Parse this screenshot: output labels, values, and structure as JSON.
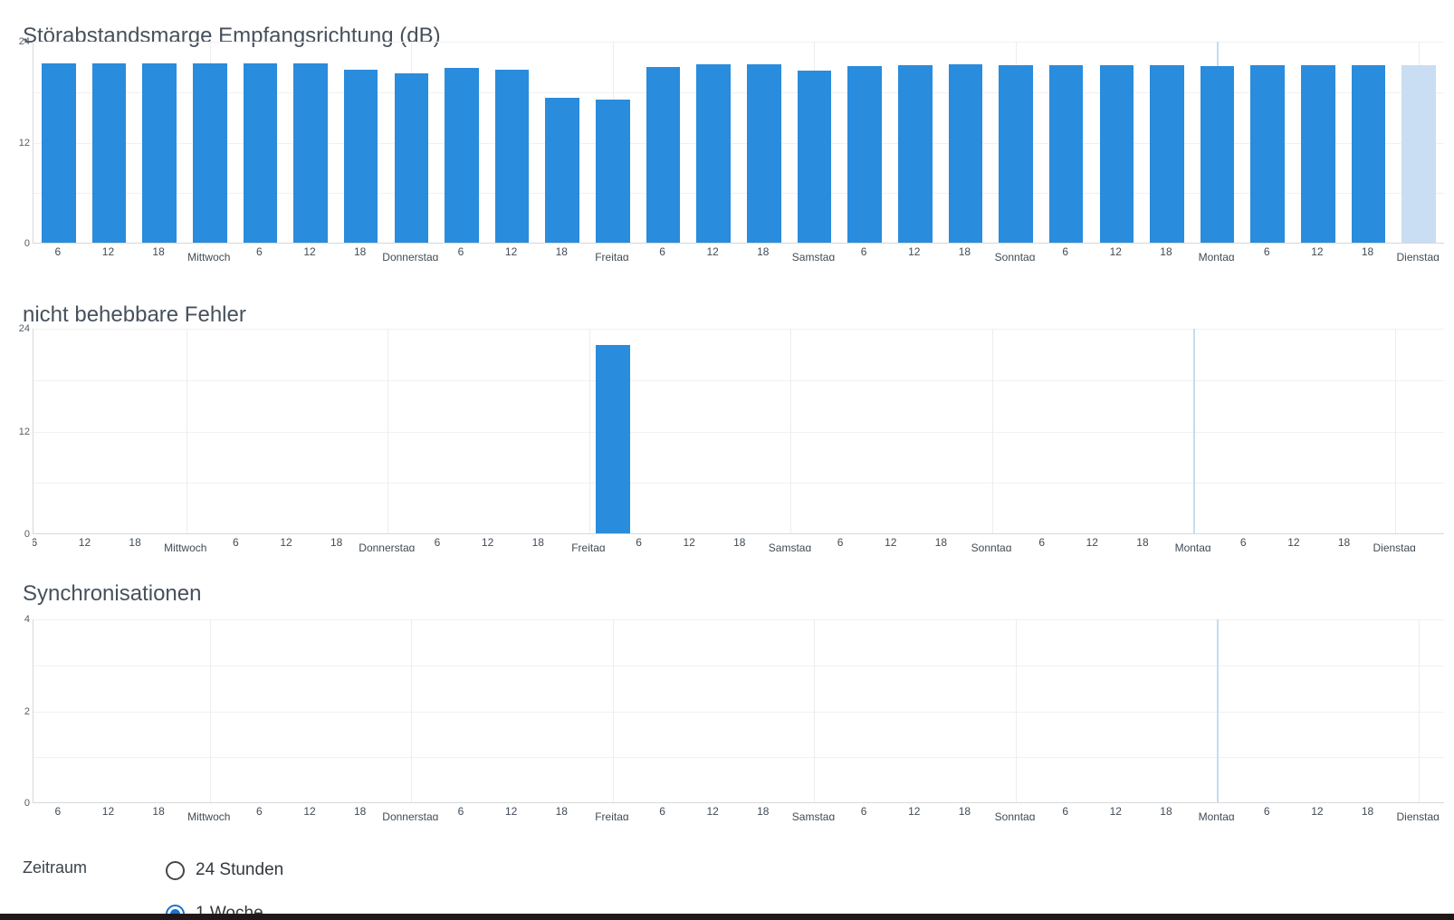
{
  "colors": {
    "bar": "#298cdc",
    "bar_highlight": "#c9def2",
    "marker_line": "#c3ddf1",
    "grid": "#f1f1f1",
    "day_grid": "#ededed",
    "axis": "#d8d8d8",
    "title_text": "#47515c",
    "tick_text": "#525c66",
    "radio_selected": "#1872ce",
    "radio_unselected": "#44474a",
    "bottom_bar": "#201719"
  },
  "x_axis": {
    "slot_labels": [
      "6",
      "12",
      "18",
      "Mittwoch",
      "6",
      "12",
      "18",
      "Donnerstag",
      "6",
      "12",
      "18",
      "Freitag",
      "6",
      "12",
      "18",
      "Samstag",
      "6",
      "12",
      "18",
      "Sonntag",
      "6",
      "12",
      "18",
      "Montag",
      "6",
      "12",
      "18",
      "Dienstag"
    ],
    "day_slots": [
      3,
      7,
      11,
      15,
      19,
      23,
      27
    ],
    "marker_slot": 23
  },
  "charts": [
    {
      "title": "Störabstandsmarge Empfangsrichtung (dB)",
      "y_ticks": [
        0,
        12,
        24
      ],
      "y_max": 24,
      "grid_step": 6,
      "highlight_last": true,
      "values": [
        21.3,
        21.3,
        21.3,
        21.3,
        21.3,
        21.3,
        20.6,
        20.1,
        20.8,
        20.6,
        17.2,
        17.0,
        20.9,
        21.2,
        21.2,
        20.4,
        21.0,
        21.1,
        21.2,
        21.1,
        21.1,
        21.1,
        21.1,
        21.0,
        21.1,
        21.1,
        21.1,
        21.1
      ]
    },
    {
      "title": "nicht behebbare Fehler",
      "y_ticks": [
        0,
        12,
        24
      ],
      "y_max": 24,
      "grid_step": 6,
      "highlight_last": false,
      "values": [
        0,
        0,
        0,
        0,
        0,
        0,
        0,
        0,
        0,
        0,
        0,
        22,
        0,
        0,
        0,
        0,
        0,
        0,
        0,
        0,
        0,
        0,
        0,
        0,
        0,
        0,
        0,
        0
      ]
    },
    {
      "title": "Synchronisationen",
      "y_ticks": [
        0,
        2,
        4
      ],
      "y_max": 4,
      "grid_step": 1,
      "highlight_last": false,
      "values": [
        0,
        0,
        0,
        0,
        0,
        0,
        0,
        0,
        0,
        0,
        0,
        0,
        0,
        0,
        0,
        0,
        0,
        0,
        0,
        0,
        0,
        0,
        0,
        0,
        0,
        0,
        0,
        0
      ]
    }
  ],
  "chart_data": [
    {
      "type": "bar",
      "title": "Störabstandsmarge Empfangsrichtung (dB)",
      "categories": [
        "6",
        "12",
        "18",
        "Mittwoch",
        "6",
        "12",
        "18",
        "Donnerstag",
        "6",
        "12",
        "18",
        "Freitag",
        "6",
        "12",
        "18",
        "Samstag",
        "6",
        "12",
        "18",
        "Sonntag",
        "6",
        "12",
        "18",
        "Montag",
        "6",
        "12",
        "18",
        "Dienstag"
      ],
      "values": [
        21.3,
        21.3,
        21.3,
        21.3,
        21.3,
        21.3,
        20.6,
        20.1,
        20.8,
        20.6,
        17.2,
        17.0,
        20.9,
        21.2,
        21.2,
        20.4,
        21.0,
        21.1,
        21.2,
        21.1,
        21.1,
        21.1,
        21.1,
        21.0,
        21.1,
        21.1,
        21.1,
        21.1
      ],
      "xlabel": "",
      "ylabel": "",
      "ylim": [
        0,
        24
      ],
      "y_tick_labels": [
        0,
        12,
        24
      ],
      "grid": "on",
      "legend": "none",
      "note_last_bar": "highlighted light blue (current incomplete period, Dienstag)"
    },
    {
      "type": "bar",
      "title": "nicht behebbare Fehler",
      "categories": [
        "6",
        "12",
        "18",
        "Mittwoch",
        "6",
        "12",
        "18",
        "Donnerstag",
        "6",
        "12",
        "18",
        "Freitag",
        "6",
        "12",
        "18",
        "Samstag",
        "6",
        "12",
        "18",
        "Sonntag",
        "6",
        "12",
        "18",
        "Montag",
        "6",
        "12",
        "18",
        "Dienstag"
      ],
      "values": [
        0,
        0,
        0,
        0,
        0,
        0,
        0,
        0,
        0,
        0,
        0,
        22,
        0,
        0,
        0,
        0,
        0,
        0,
        0,
        0,
        0,
        0,
        0,
        0,
        0,
        0,
        0,
        0
      ],
      "xlabel": "",
      "ylabel": "",
      "ylim": [
        0,
        24
      ],
      "y_tick_labels": [
        0,
        12,
        24
      ],
      "grid": "on",
      "legend": "none"
    },
    {
      "type": "bar",
      "title": "Synchronisationen",
      "categories": [
        "6",
        "12",
        "18",
        "Mittwoch",
        "6",
        "12",
        "18",
        "Donnerstag",
        "6",
        "12",
        "18",
        "Freitag",
        "6",
        "12",
        "18",
        "Samstag",
        "6",
        "12",
        "18",
        "Sonntag",
        "6",
        "12",
        "18",
        "Montag",
        "6",
        "12",
        "18",
        "Dienstag"
      ],
      "values": [
        0,
        0,
        0,
        0,
        0,
        0,
        0,
        0,
        0,
        0,
        0,
        0,
        0,
        0,
        0,
        0,
        0,
        0,
        0,
        0,
        0,
        0,
        0,
        0,
        0,
        0,
        0,
        0
      ],
      "xlabel": "",
      "ylabel": "",
      "ylim": [
        0,
        4
      ],
      "y_tick_labels": [
        0,
        2,
        4
      ],
      "grid": "on",
      "legend": "none"
    }
  ],
  "controls": {
    "group_label": "Zeitraum",
    "options": [
      {
        "label": "24 Stunden",
        "selected": false
      },
      {
        "label": "1 Woche",
        "selected": true
      }
    ]
  }
}
